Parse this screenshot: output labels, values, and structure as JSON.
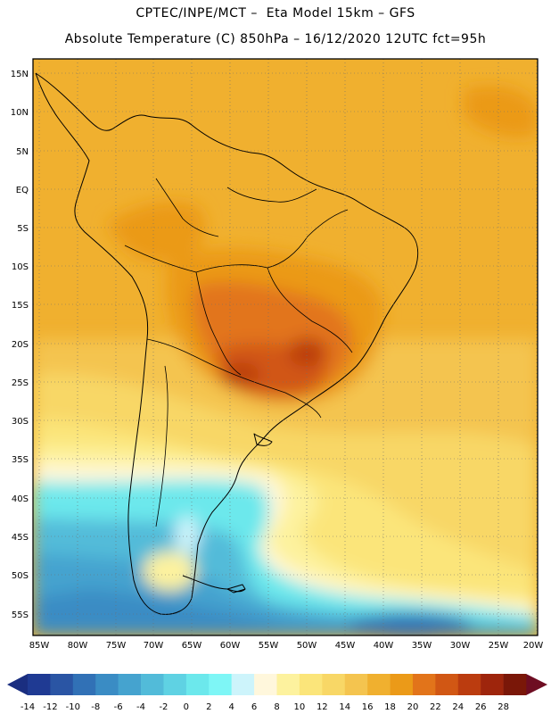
{
  "header": {
    "line1": "CPTEC/INPE/MCT –  Eta Model 15km – GFS",
    "line2": "Absolute Temperature (C) 850hPa – 16/12/2020 12UTC fct=95h"
  },
  "axes": {
    "lat_labels": [
      "15N",
      "10N",
      "5N",
      "EQ",
      "5S",
      "10S",
      "15S",
      "20S",
      "25S",
      "30S",
      "35S",
      "40S",
      "45S",
      "50S",
      "55S"
    ],
    "lon_labels": [
      "85W",
      "80W",
      "75W",
      "70W",
      "65W",
      "60W",
      "55W",
      "50W",
      "45W",
      "40W",
      "35W",
      "30W",
      "25W",
      "20W"
    ]
  },
  "colorbar": {
    "labels": [
      "-14",
      "-12",
      "-10",
      "-8",
      "-6",
      "-4",
      "-2",
      "0",
      "2",
      "4",
      "6",
      "8",
      "10",
      "12",
      "14",
      "16",
      "18",
      "20",
      "22",
      "24",
      "26",
      "28"
    ],
    "colors": [
      "#1f3a93",
      "#2a55a4",
      "#3171b6",
      "#3a8cc4",
      "#45a3cf",
      "#52bbd9",
      "#5fd2e3",
      "#6ce8ec",
      "#7ef6f6",
      "#cdf4fb",
      "#fff7dc",
      "#fdf29e",
      "#fbe57a",
      "#f8d766",
      "#f4c44f",
      "#f0b02f",
      "#eb9a18",
      "#e2741a",
      "#d15714",
      "#bb3c0f",
      "#9e250c",
      "#7a1708"
    ],
    "low_arrow": "#1a2e80",
    "high_arrow": "#6e0d22"
  }
}
